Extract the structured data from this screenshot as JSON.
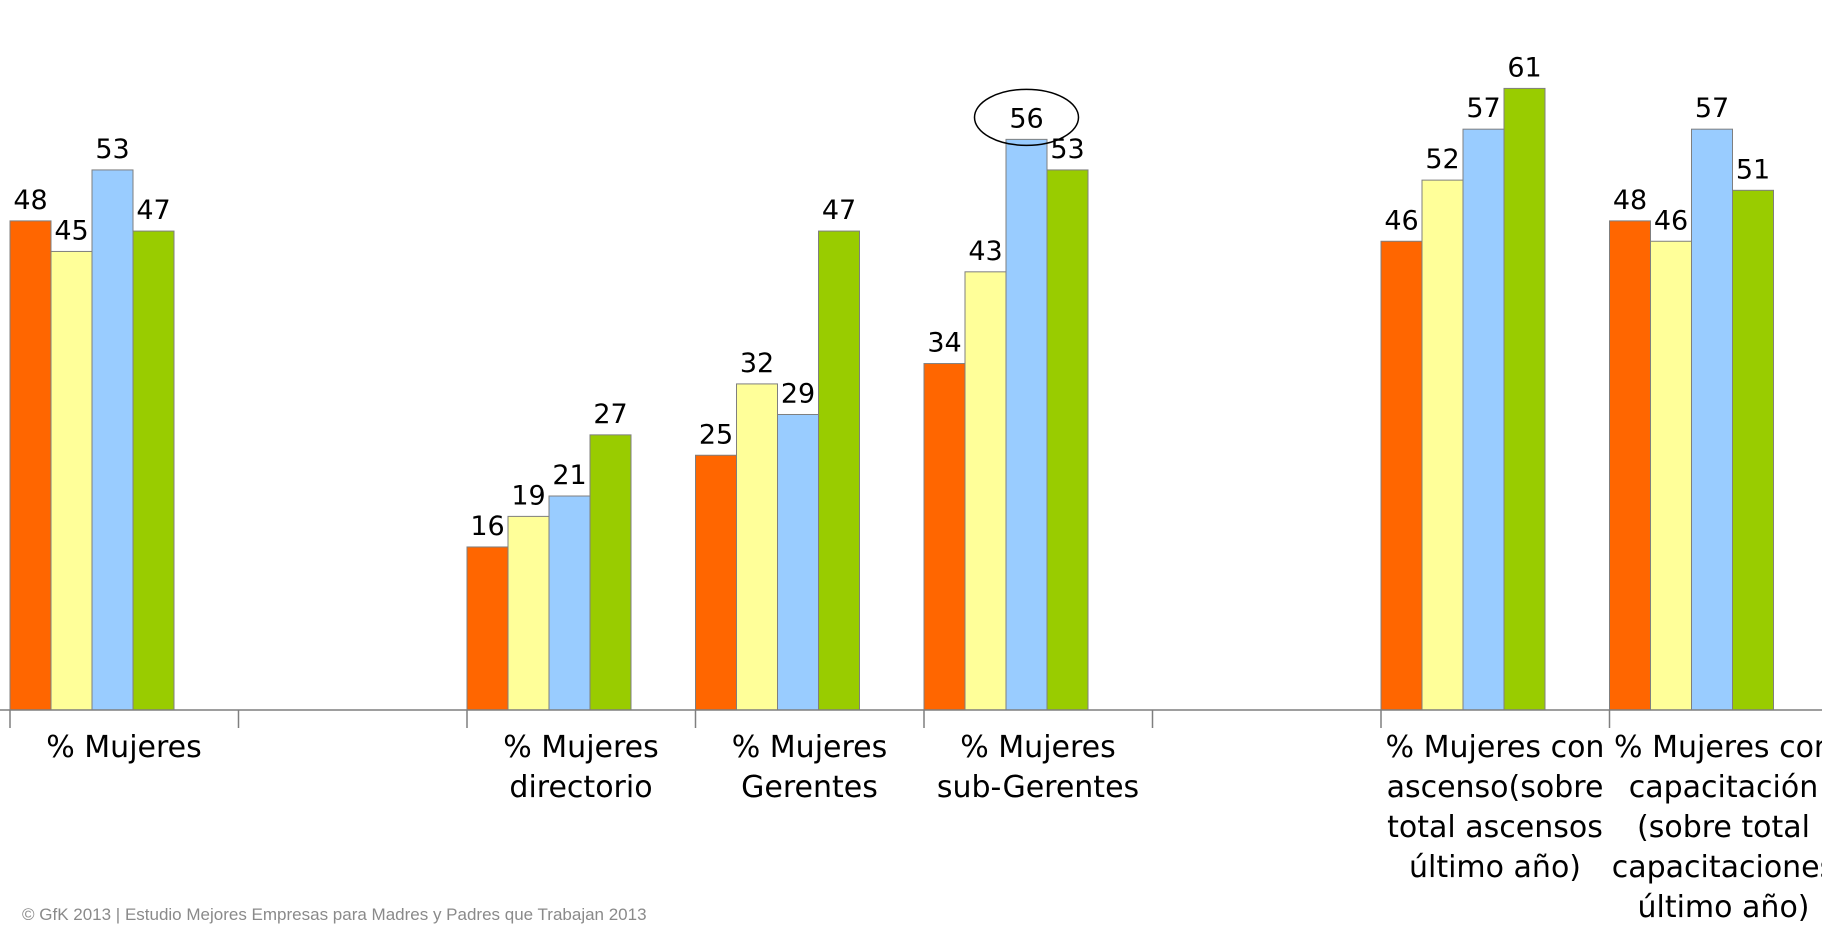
{
  "chart_data": {
    "type": "bar",
    "categories": [
      "% Mujeres",
      "",
      "% Mujeres directorio",
      "% Mujeres Gerentes",
      "% Mujeres sub-Gerentes",
      "",
      "% Mujeres con ascenso(sobre total ascensos último año)",
      "% Mujeres con capacitación (sobre total capacitaciones último año)"
    ],
    "series": [
      {
        "color": "#ff6600",
        "values": [
          48,
          null,
          16,
          25,
          34,
          null,
          46,
          48
        ]
      },
      {
        "color": "#ffff99",
        "values": [
          45,
          null,
          19,
          32,
          43,
          null,
          52,
          46
        ]
      },
      {
        "color": "#99ccff",
        "values": [
          53,
          null,
          21,
          29,
          56,
          null,
          57,
          57
        ]
      },
      {
        "color": "#99cc00",
        "values": [
          47,
          null,
          27,
          47,
          53,
          null,
          61,
          51
        ]
      }
    ],
    "highlighted": {
      "category_index": 4,
      "series_index": 2,
      "value": 56,
      "marker": "ellipse"
    },
    "ylim": [
      0,
      65
    ],
    "grid": false,
    "legend": "none"
  },
  "category_labels": [
    [
      "% Mujeres"
    ],
    [],
    [
      "% Mujeres",
      "directorio"
    ],
    [
      "% Mujeres",
      "Gerentes"
    ],
    [
      "% Mujeres",
      "sub-Gerentes"
    ],
    [],
    [
      "% Mujeres con",
      "ascenso(sobre",
      "total ascensos",
      "último año)"
    ],
    [
      "% Mujeres con",
      "capacitación",
      "(sobre total",
      "capacitaciones",
      "último año)"
    ]
  ],
  "footer": {
    "text": "© GfK 2013 | Estudio Mejores Empresas para Madres y Padres que Trabajan 2013"
  }
}
